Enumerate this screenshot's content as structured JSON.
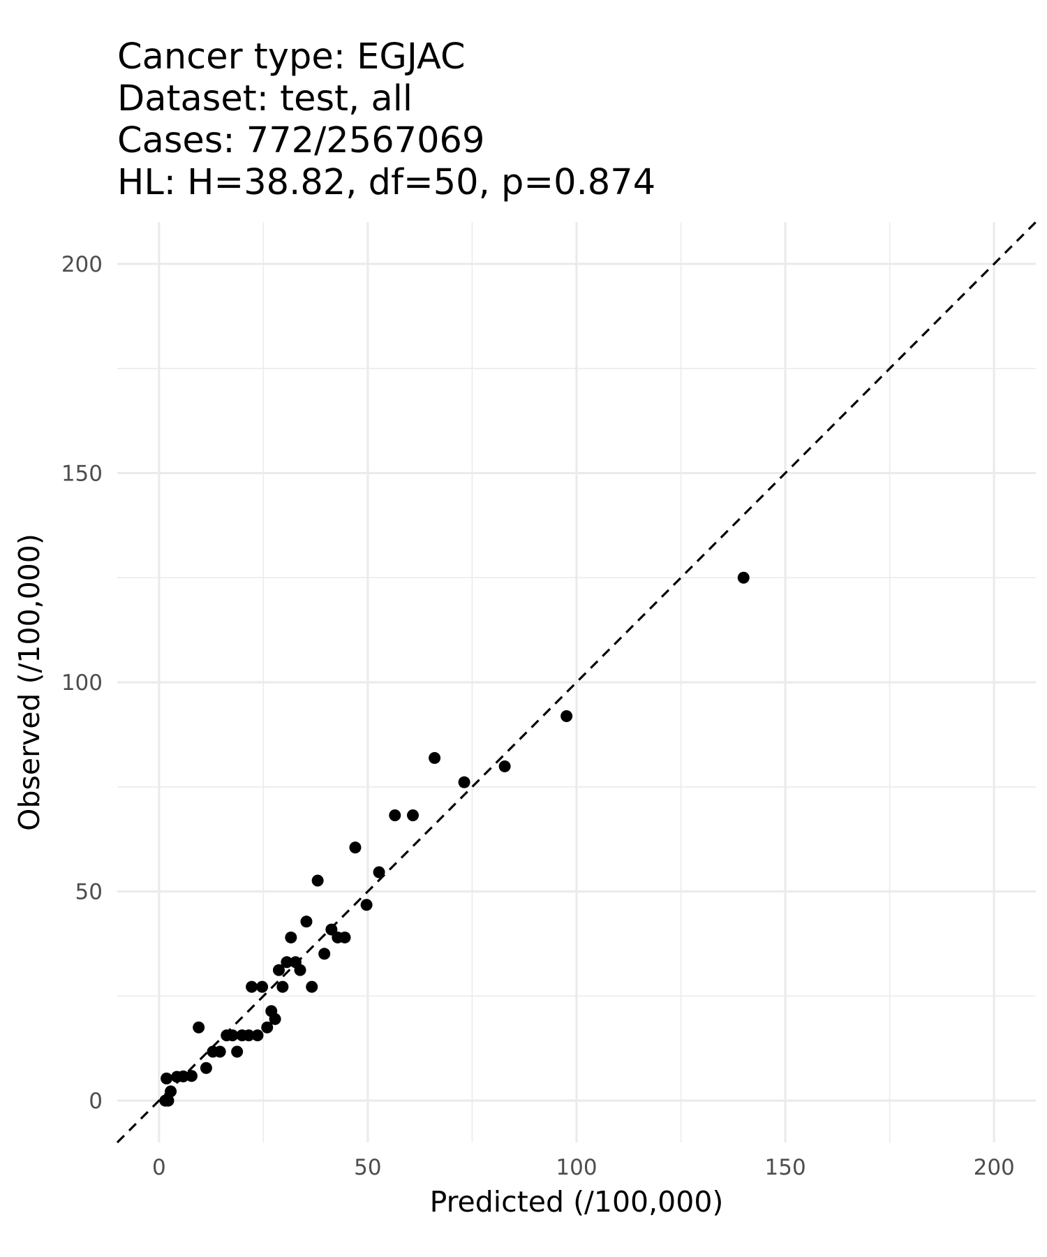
{
  "chart_data": {
    "type": "scatter",
    "title": [
      "Cancer type: EGJAC",
      "Dataset: test, all",
      "Cases: 772/2567069",
      "HL: H=38.82, df=50, p=0.874"
    ],
    "xlabel": "Predicted (/100,000)",
    "ylabel": "Observed (/100,000)",
    "xlim": [
      -10,
      210
    ],
    "ylim": [
      -10,
      210
    ],
    "xticks": [
      0,
      50,
      100,
      150,
      200
    ],
    "yticks": [
      0,
      50,
      100,
      150,
      200
    ],
    "grid": true,
    "reference_line": {
      "style": "dashed",
      "slope": 1,
      "intercept": 0
    },
    "points": [
      [
        1.5,
        0
      ],
      [
        2.2,
        0
      ],
      [
        1.8,
        5.3
      ],
      [
        2.8,
        2.2
      ],
      [
        4.3,
        5.7
      ],
      [
        5.8,
        5.8
      ],
      [
        7.8,
        5.9
      ],
      [
        9.5,
        17.5
      ],
      [
        11.3,
        7.8
      ],
      [
        12.9,
        11.7
      ],
      [
        14.6,
        11.7
      ],
      [
        16.2,
        15.6
      ],
      [
        17.6,
        15.6
      ],
      [
        18.7,
        11.7
      ],
      [
        19.9,
        15.6
      ],
      [
        21.5,
        15.6
      ],
      [
        22.2,
        27.2
      ],
      [
        23.6,
        15.6
      ],
      [
        24.7,
        27.2
      ],
      [
        25.9,
        17.5
      ],
      [
        26.9,
        21.4
      ],
      [
        27.8,
        19.5
      ],
      [
        28.7,
        31.2
      ],
      [
        29.6,
        27.2
      ],
      [
        30.6,
        33.1
      ],
      [
        31.6,
        39.0
      ],
      [
        32.7,
        33.1
      ],
      [
        33.8,
        31.2
      ],
      [
        35.3,
        42.8
      ],
      [
        36.6,
        27.2
      ],
      [
        38.0,
        52.6
      ],
      [
        39.6,
        35.1
      ],
      [
        41.3,
        40.9
      ],
      [
        42.8,
        39.0
      ],
      [
        44.5,
        39.0
      ],
      [
        47.0,
        60.5
      ],
      [
        49.7,
        46.8
      ],
      [
        52.7,
        54.6
      ],
      [
        56.5,
        68.2
      ],
      [
        60.8,
        68.2
      ],
      [
        66.0,
        81.9
      ],
      [
        73.1,
        76.1
      ],
      [
        82.8,
        79.9
      ],
      [
        97.6,
        91.9
      ],
      [
        140.0,
        125.0
      ]
    ]
  }
}
